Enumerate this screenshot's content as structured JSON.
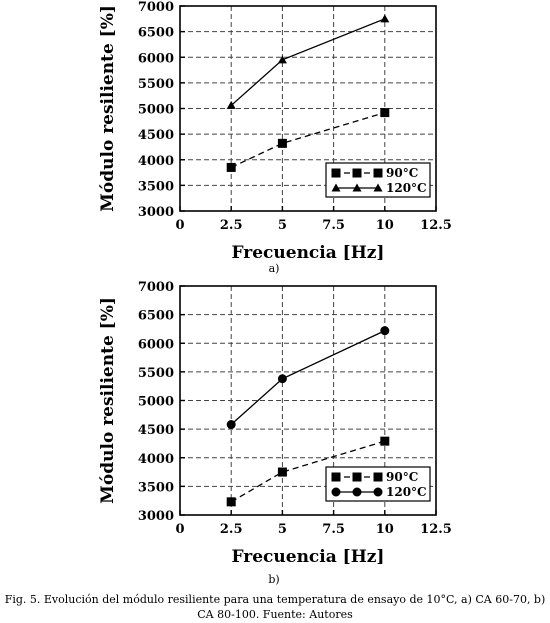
{
  "chart_data": [
    {
      "type": "line",
      "panel_label": "a)",
      "xlabel": "Frecuencia [Hz]",
      "ylabel": "Módulo resiliente [%]",
      "xlim": [
        0,
        12.5
      ],
      "ylim": [
        3000,
        7000
      ],
      "xticks": [
        "0",
        "2.5",
        "5",
        "7.5",
        "10",
        "12.5"
      ],
      "yticks": [
        "3000",
        "3500",
        "4000",
        "4500",
        "5000",
        "5500",
        "6000",
        "6500",
        "7000"
      ],
      "grid": true,
      "legend_position": "bottom-right",
      "x": [
        2.5,
        5,
        10
      ],
      "series": [
        {
          "name": "90°C",
          "values": [
            3850,
            4320,
            4920
          ],
          "marker": "square",
          "line": "dashed"
        },
        {
          "name": "120°C",
          "values": [
            5060,
            5950,
            6750
          ],
          "marker": "triangle",
          "line": "solid"
        }
      ]
    },
    {
      "type": "line",
      "panel_label": "b)",
      "xlabel": "Frecuencia [Hz]",
      "ylabel": "Módulo resiliente [%]",
      "xlim": [
        0,
        12.5
      ],
      "ylim": [
        3000,
        7000
      ],
      "xticks": [
        "0",
        "2.5",
        "5",
        "7.5",
        "10",
        "12.5"
      ],
      "yticks": [
        "3000",
        "3500",
        "4000",
        "4500",
        "5000",
        "5500",
        "6000",
        "6500",
        "7000"
      ],
      "grid": true,
      "legend_position": "bottom-right",
      "x": [
        2.5,
        5,
        10
      ],
      "series": [
        {
          "name": "90°C",
          "values": [
            3230,
            3750,
            4290
          ],
          "marker": "square",
          "line": "dashed"
        },
        {
          "name": "120°C",
          "values": [
            4580,
            5380,
            6220
          ],
          "marker": "circle",
          "line": "solid"
        }
      ]
    }
  ],
  "caption": "Fig. 5. Evolución del módulo resiliente para una temperatura de ensayo de 10°C, a) CA 60-70, b) CA 80-100. Fuente: Autores"
}
